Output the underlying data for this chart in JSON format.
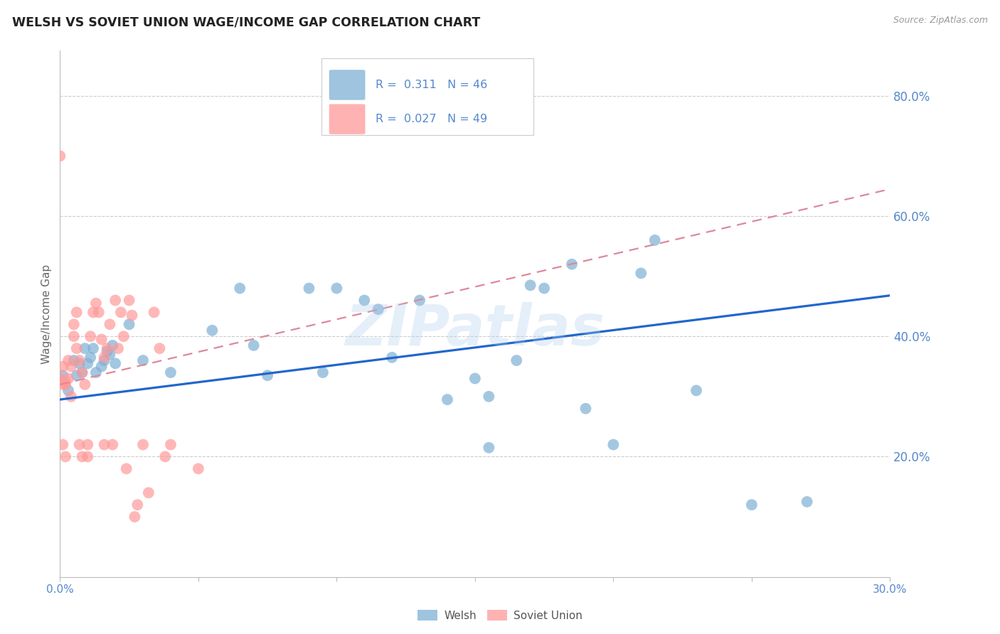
{
  "title": "WELSH VS SOVIET UNION WAGE/INCOME GAP CORRELATION CHART",
  "source": "Source: ZipAtlas.com",
  "ylabel": "Wage/Income Gap",
  "xmin": 0.0,
  "xmax": 0.3,
  "ymin": 0.0,
  "ymax": 0.875,
  "yticks": [
    0.2,
    0.4,
    0.6,
    0.8
  ],
  "ytick_labels": [
    "20.0%",
    "40.0%",
    "60.0%",
    "80.0%"
  ],
  "xticks": [
    0.0,
    0.05,
    0.1,
    0.15,
    0.2,
    0.25,
    0.3
  ],
  "xtick_labels": [
    "0.0%",
    "",
    "",
    "",
    "",
    "",
    "30.0%"
  ],
  "welsh_color": "#7EB0D5",
  "soviet_color": "#FF9999",
  "welsh_R": 0.311,
  "welsh_N": 46,
  "soviet_R": 0.027,
  "soviet_N": 49,
  "welsh_line_color": "#2266CC",
  "soviet_line_color": "#DD8899",
  "axis_color": "#5588CC",
  "watermark": "ZIPatlas",
  "welsh_x": [
    0.001,
    0.003,
    0.005,
    0.006,
    0.007,
    0.008,
    0.009,
    0.01,
    0.011,
    0.012,
    0.013,
    0.015,
    0.016,
    0.017,
    0.018,
    0.019,
    0.02,
    0.025,
    0.03,
    0.04,
    0.055,
    0.065,
    0.07,
    0.075,
    0.09,
    0.095,
    0.1,
    0.11,
    0.115,
    0.12,
    0.13,
    0.14,
    0.15,
    0.155,
    0.165,
    0.17,
    0.175,
    0.185,
    0.19,
    0.2,
    0.21,
    0.215,
    0.23,
    0.25,
    0.155,
    0.27
  ],
  "welsh_y": [
    0.335,
    0.31,
    0.36,
    0.335,
    0.355,
    0.34,
    0.38,
    0.355,
    0.365,
    0.38,
    0.34,
    0.35,
    0.36,
    0.375,
    0.37,
    0.385,
    0.355,
    0.42,
    0.36,
    0.34,
    0.41,
    0.48,
    0.385,
    0.335,
    0.48,
    0.34,
    0.48,
    0.46,
    0.445,
    0.365,
    0.46,
    0.295,
    0.33,
    0.3,
    0.36,
    0.485,
    0.48,
    0.52,
    0.28,
    0.22,
    0.505,
    0.56,
    0.31,
    0.12,
    0.215,
    0.125
  ],
  "soviet_x": [
    0.0,
    0.0,
    0.001,
    0.001,
    0.001,
    0.002,
    0.002,
    0.002,
    0.003,
    0.003,
    0.004,
    0.004,
    0.005,
    0.005,
    0.006,
    0.006,
    0.007,
    0.007,
    0.008,
    0.008,
    0.009,
    0.01,
    0.01,
    0.011,
    0.012,
    0.013,
    0.014,
    0.015,
    0.016,
    0.016,
    0.017,
    0.018,
    0.019,
    0.02,
    0.021,
    0.022,
    0.023,
    0.024,
    0.025,
    0.026,
    0.027,
    0.028,
    0.03,
    0.032,
    0.034,
    0.036,
    0.038,
    0.04,
    0.05
  ],
  "soviet_y": [
    0.7,
    0.33,
    0.32,
    0.22,
    0.35,
    0.325,
    0.2,
    0.32,
    0.33,
    0.36,
    0.35,
    0.3,
    0.4,
    0.42,
    0.44,
    0.38,
    0.36,
    0.22,
    0.2,
    0.34,
    0.32,
    0.2,
    0.22,
    0.4,
    0.44,
    0.455,
    0.44,
    0.395,
    0.365,
    0.22,
    0.38,
    0.42,
    0.22,
    0.46,
    0.38,
    0.44,
    0.4,
    0.18,
    0.46,
    0.435,
    0.1,
    0.12,
    0.22,
    0.14,
    0.44,
    0.38,
    0.2,
    0.22,
    0.18
  ]
}
